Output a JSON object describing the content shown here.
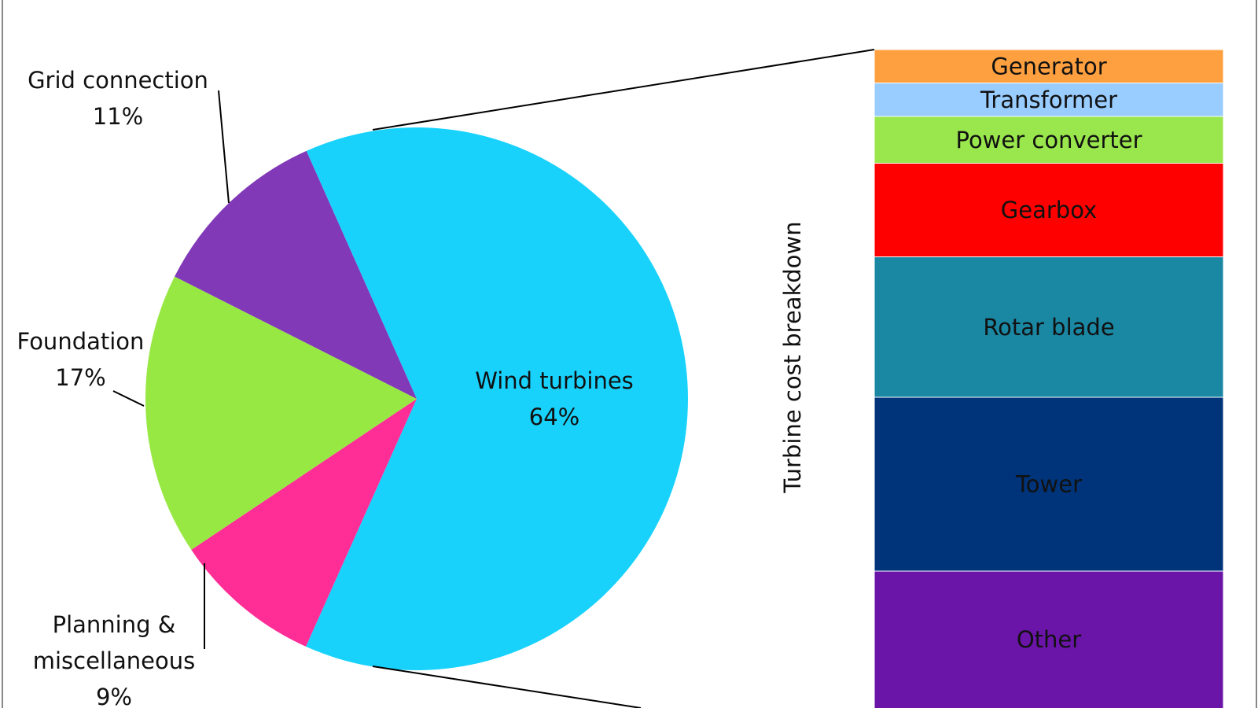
{
  "chart_data": {
    "type": "pie-of-bar",
    "categories": [
      "Wind turbines",
      "Planning & miscellaneous",
      "Foundation",
      "Grid connection"
    ],
    "values": [
      64,
      9,
      17,
      11
    ],
    "value_labels": [
      "64%",
      "9%",
      "17%",
      "11%"
    ],
    "colors": [
      "#19d2fc",
      "#ff2d96",
      "#98e844",
      "#8239b8"
    ],
    "breakdown": {
      "axis_label": "Turbine cost breakdown",
      "categories": [
        "Generator",
        "Transformer",
        "Power converter",
        "Gearbox",
        "Rotar blade",
        "Tower",
        "Other"
      ],
      "values": [
        5,
        5,
        7,
        14,
        21,
        26,
        22
      ],
      "colors": [
        "#ffa040",
        "#99ccff",
        "#99e64d",
        "#ff0000",
        "#1a87a3",
        "#00347a",
        "#6a14a8"
      ]
    }
  }
}
